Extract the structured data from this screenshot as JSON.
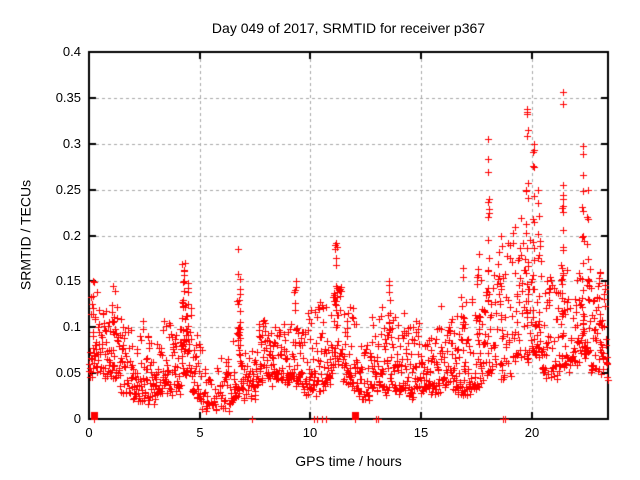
{
  "chart_data": {
    "type": "scatter",
    "title": "Day 049 of 2017, SRMTID for receiver p367",
    "xlabel": "GPS time / hours",
    "ylabel": "SRMTID / TECUs",
    "xlim": [
      0,
      23.45
    ],
    "ylim": [
      0,
      0.4
    ],
    "xticks": [
      0,
      5,
      10,
      15,
      20
    ],
    "yticks": [
      0,
      0.05,
      0.1,
      0.15,
      0.2,
      0.25,
      0.3,
      0.35,
      0.4
    ],
    "grid": true,
    "grid_style": "dashed",
    "legend": "none",
    "marker": {
      "shape": "plus",
      "size": 7,
      "color": "#ff0000"
    },
    "colors": {
      "grid": "#a8a8a8",
      "axis": "#000000",
      "background": "#ffffff",
      "text": "#000000"
    },
    "sampling_interval_hours": 0.0139,
    "band_envelope_columns": [
      "h_start",
      "h_end",
      "y_min",
      "y_max",
      "density"
    ],
    "band_envelope": [
      [
        0.0,
        0.5,
        0.035,
        0.125,
        1
      ],
      [
        0.5,
        1.0,
        0.035,
        0.11,
        1
      ],
      [
        1.0,
        1.4,
        0.04,
        0.14,
        1
      ],
      [
        1.4,
        2.0,
        0.03,
        0.11,
        1
      ],
      [
        2.0,
        2.6,
        0.03,
        0.12,
        1
      ],
      [
        2.6,
        3.2,
        0.03,
        0.105,
        1
      ],
      [
        3.2,
        3.7,
        0.035,
        0.125,
        1
      ],
      [
        3.7,
        4.15,
        0.03,
        0.1,
        1
      ],
      [
        4.15,
        4.65,
        0.045,
        0.13,
        1
      ],
      [
        4.65,
        5.1,
        0.025,
        0.09,
        1
      ],
      [
        5.1,
        5.9,
        0.015,
        0.065,
        0.6
      ],
      [
        5.9,
        6.5,
        0.02,
        0.085,
        0.8
      ],
      [
        6.5,
        7.0,
        0.03,
        0.12,
        0.9
      ],
      [
        7.0,
        7.6,
        0.02,
        0.075,
        0.8
      ],
      [
        7.6,
        8.3,
        0.03,
        0.1,
        1
      ],
      [
        8.3,
        9.1,
        0.035,
        0.095,
        1
      ],
      [
        9.1,
        9.7,
        0.04,
        0.12,
        1
      ],
      [
        9.7,
        10.6,
        0.03,
        0.125,
        1
      ],
      [
        10.6,
        11.0,
        0.035,
        0.115,
        1
      ],
      [
        11.0,
        11.45,
        0.05,
        0.14,
        1
      ],
      [
        11.45,
        11.95,
        0.03,
        0.115,
        1
      ],
      [
        11.95,
        12.7,
        0.02,
        0.1,
        0.85
      ],
      [
        12.7,
        13.6,
        0.04,
        0.13,
        1
      ],
      [
        13.6,
        14.3,
        0.04,
        0.125,
        1
      ],
      [
        14.3,
        15.1,
        0.03,
        0.11,
        1
      ],
      [
        15.1,
        15.9,
        0.03,
        0.1,
        1
      ],
      [
        15.9,
        16.6,
        0.04,
        0.125,
        1
      ],
      [
        16.6,
        17.3,
        0.04,
        0.15,
        1
      ],
      [
        17.3,
        17.9,
        0.045,
        0.17,
        1
      ],
      [
        17.9,
        18.4,
        0.05,
        0.16,
        0.9
      ],
      [
        18.4,
        19.1,
        0.04,
        0.19,
        0.9
      ],
      [
        19.1,
        19.9,
        0.055,
        0.21,
        0.9
      ],
      [
        19.9,
        20.45,
        0.07,
        0.21,
        1
      ],
      [
        20.45,
        21.15,
        0.05,
        0.17,
        1
      ],
      [
        21.15,
        21.65,
        0.055,
        0.17,
        0.9
      ],
      [
        21.65,
        22.15,
        0.05,
        0.16,
        0.9
      ],
      [
        22.15,
        22.6,
        0.06,
        0.17,
        0.9
      ],
      [
        22.6,
        23.45,
        0.04,
        0.16,
        1
      ]
    ],
    "spikes_columns": [
      "h",
      "y_base",
      "y_top",
      "count",
      "width_h"
    ],
    "spikes": [
      [
        0.18,
        0.09,
        0.15,
        6,
        0.12
      ],
      [
        1.1,
        0.09,
        0.145,
        8,
        0.18
      ],
      [
        4.35,
        0.08,
        0.17,
        30,
        0.3
      ],
      [
        6.75,
        0.08,
        0.185,
        20,
        0.18
      ],
      [
        9.35,
        0.09,
        0.15,
        8,
        0.15
      ],
      [
        11.15,
        0.1,
        0.192,
        18,
        0.14
      ],
      [
        13.55,
        0.09,
        0.15,
        8,
        0.18
      ],
      [
        16.9,
        0.09,
        0.165,
        10,
        0.18
      ],
      [
        17.6,
        0.09,
        0.18,
        10,
        0.15
      ],
      [
        18.05,
        0.11,
        0.305,
        16,
        0.1
      ],
      [
        18.6,
        0.08,
        0.2,
        8,
        0.12
      ],
      [
        19.8,
        0.11,
        0.338,
        20,
        0.12
      ],
      [
        20.1,
        0.11,
        0.3,
        16,
        0.12
      ],
      [
        20.3,
        0.1,
        0.25,
        10,
        0.12
      ],
      [
        21.4,
        0.09,
        0.356,
        22,
        0.1
      ],
      [
        22.3,
        0.09,
        0.298,
        16,
        0.1
      ],
      [
        22.55,
        0.08,
        0.25,
        8,
        0.1
      ],
      [
        23.1,
        0.07,
        0.16,
        8,
        0.18
      ]
    ],
    "zero_value_points": [
      {
        "h": 0.24,
        "n": 6
      },
      {
        "h": 7.35,
        "n": 1
      },
      {
        "h": 10.15,
        "n": 1
      },
      {
        "h": 10.3,
        "n": 1
      },
      {
        "h": 10.55,
        "n": 1
      },
      {
        "h": 10.7,
        "n": 1
      },
      {
        "h": 12.0,
        "n": 6
      },
      {
        "h": 12.95,
        "n": 1
      },
      {
        "h": 13.05,
        "n": 1
      },
      {
        "h": 18.7,
        "n": 1
      },
      {
        "h": 18.8,
        "n": 1
      }
    ],
    "y_max_observed": 0.356,
    "tick_label_values": {
      "x": [
        "0",
        "5",
        "10",
        "15",
        "20"
      ],
      "y": [
        "0",
        "0.05",
        "0.1",
        "0.15",
        "0.2",
        "0.25",
        "0.3",
        "0.35",
        "0.4"
      ]
    }
  }
}
